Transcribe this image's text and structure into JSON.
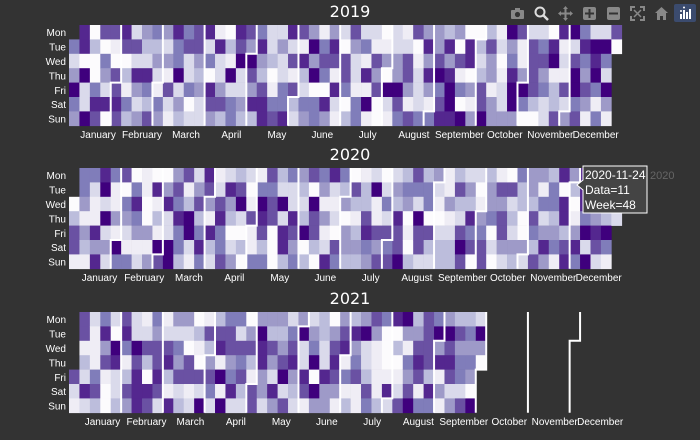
{
  "colors": {
    "background": "#333333",
    "gap": "#ffffff",
    "colorscale": [
      "#fcfbfd",
      "#efedf5",
      "#dadaeb",
      "#bcbddc",
      "#9e9ac8",
      "#807dba",
      "#6a51a3",
      "#54278f",
      "#3f007d"
    ]
  },
  "modebar": {
    "icons": [
      "camera-icon",
      "zoom-icon",
      "pan-icon",
      "zoom-in-icon",
      "zoom-out-icon",
      "autoscale-icon",
      "home-icon",
      "plotly-logo-icon"
    ]
  },
  "chart_data": {
    "type": "heatmap",
    "day_labels": [
      "Mon",
      "Tue",
      "Wed",
      "Thu",
      "Fri",
      "Sat",
      "Sun"
    ],
    "month_labels": [
      "January",
      "February",
      "March",
      "April",
      "May",
      "June",
      "July",
      "August",
      "September",
      "October",
      "November",
      "December"
    ],
    "subplots": [
      {
        "title": "2019",
        "year": 2019,
        "first_day_offset": 1,
        "days": 365,
        "data_days": 365
      },
      {
        "title": "2020",
        "year": 2020,
        "first_day_offset": 2,
        "days": 366,
        "data_days": 366
      },
      {
        "title": "2021",
        "year": 2021,
        "first_day_offset": 4,
        "days": 365,
        "data_days": 273
      }
    ],
    "value_range": [
      0,
      20
    ],
    "hover": {
      "date": "2020-11-24",
      "data": "Data=11",
      "week": "Week=48",
      "trace_name": "2020"
    }
  }
}
